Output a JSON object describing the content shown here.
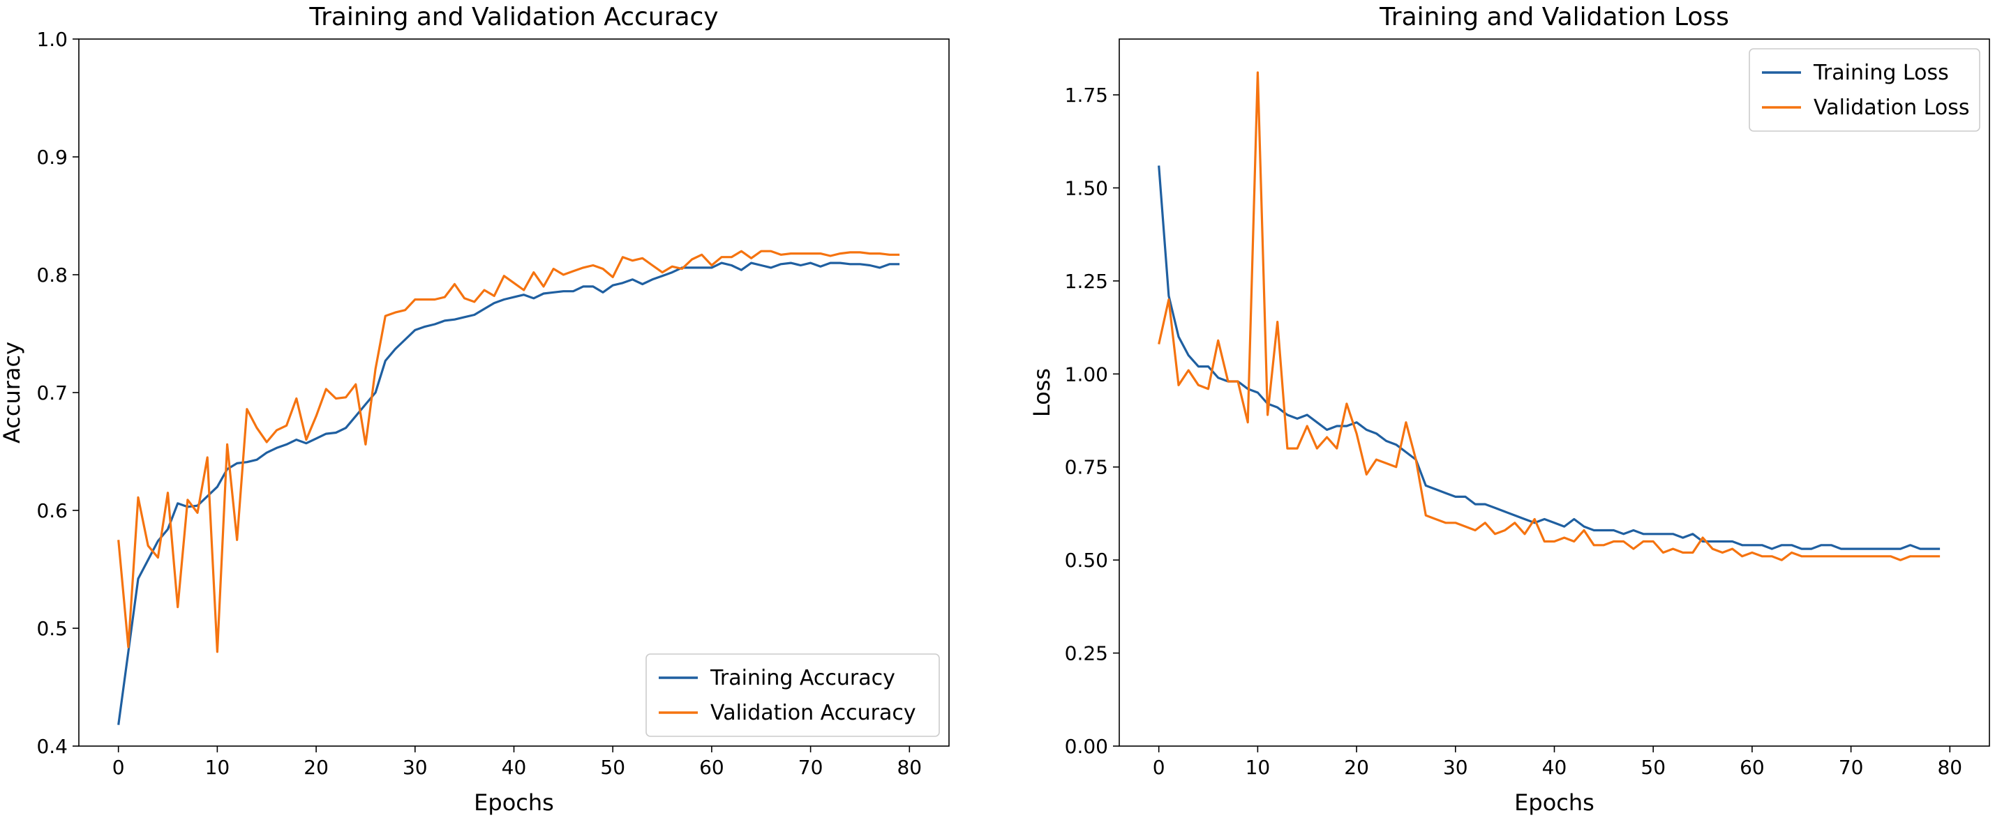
{
  "chart_data": [
    {
      "type": "line",
      "title": "Training and Validation Accuracy",
      "xlabel": "Epochs",
      "ylabel": "Accuracy",
      "xlim": [
        -4,
        84
      ],
      "ylim": [
        0.4,
        1.0
      ],
      "xticks": [
        0,
        10,
        20,
        30,
        40,
        50,
        60,
        70,
        80
      ],
      "yticks": [
        0.4,
        0.5,
        0.6,
        0.7,
        0.8,
        0.9,
        1.0
      ],
      "xtick_labels": [
        "0",
        "10",
        "20",
        "30",
        "40",
        "50",
        "60",
        "70",
        "80"
      ],
      "ytick_labels": [
        "0.4",
        "0.5",
        "0.6",
        "0.7",
        "0.8",
        "0.9",
        "1.0"
      ],
      "grid": false,
      "legend_position": "lower-right",
      "series": [
        {
          "name": "Training Accuracy",
          "color": "#1f5fa0",
          "values": [
            0.418,
            0.48,
            0.542,
            0.558,
            0.574,
            0.584,
            0.606,
            0.603,
            0.604,
            0.612,
            0.62,
            0.635,
            0.64,
            0.641,
            0.643,
            0.649,
            0.653,
            0.656,
            0.66,
            0.657,
            0.661,
            0.665,
            0.666,
            0.67,
            0.68,
            0.69,
            0.7,
            0.727,
            0.737,
            0.745,
            0.753,
            0.756,
            0.758,
            0.761,
            0.762,
            0.764,
            0.766,
            0.771,
            0.776,
            0.779,
            0.781,
            0.783,
            0.78,
            0.784,
            0.785,
            0.786,
            0.786,
            0.79,
            0.79,
            0.785,
            0.791,
            0.793,
            0.796,
            0.792,
            0.796,
            0.799,
            0.802,
            0.806,
            0.806,
            0.806,
            0.806,
            0.81,
            0.808,
            0.804,
            0.81,
            0.808,
            0.806,
            0.809,
            0.81,
            0.808,
            0.81,
            0.807,
            0.81,
            0.81,
            0.809,
            0.809,
            0.808,
            0.806,
            0.809,
            0.809
          ]
        },
        {
          "name": "Validation Accuracy",
          "color": "#f5730f",
          "values": [
            0.575,
            0.484,
            0.611,
            0.57,
            0.56,
            0.615,
            0.518,
            0.609,
            0.598,
            0.645,
            0.48,
            0.656,
            0.575,
            0.686,
            0.67,
            0.658,
            0.668,
            0.672,
            0.695,
            0.66,
            0.68,
            0.703,
            0.695,
            0.696,
            0.707,
            0.656,
            0.72,
            0.765,
            0.768,
            0.77,
            0.779,
            0.779,
            0.779,
            0.781,
            0.792,
            0.78,
            0.777,
            0.787,
            0.782,
            0.799,
            0.793,
            0.787,
            0.802,
            0.79,
            0.805,
            0.8,
            0.803,
            0.806,
            0.808,
            0.805,
            0.798,
            0.815,
            0.812,
            0.814,
            0.808,
            0.802,
            0.807,
            0.805,
            0.813,
            0.817,
            0.808,
            0.815,
            0.815,
            0.82,
            0.814,
            0.82,
            0.82,
            0.817,
            0.818,
            0.818,
            0.818,
            0.818,
            0.816,
            0.818,
            0.819,
            0.819,
            0.818,
            0.818,
            0.817,
            0.817
          ]
        }
      ]
    },
    {
      "type": "line",
      "title": "Training and Validation Loss",
      "xlabel": "Epochs",
      "ylabel": "Loss",
      "xlim": [
        -4,
        84
      ],
      "ylim": [
        0.0,
        1.9
      ],
      "xticks": [
        0,
        10,
        20,
        30,
        40,
        50,
        60,
        70,
        80
      ],
      "yticks": [
        0.0,
        0.25,
        0.5,
        0.75,
        1.0,
        1.25,
        1.5,
        1.75
      ],
      "xtick_labels": [
        "0",
        "10",
        "20",
        "30",
        "40",
        "50",
        "60",
        "70",
        "80"
      ],
      "ytick_labels": [
        "0.00",
        "0.25",
        "0.50",
        "0.75",
        "1.00",
        "1.25",
        "1.50",
        "1.75"
      ],
      "grid": false,
      "legend_position": "upper-right",
      "series": [
        {
          "name": "Training Loss",
          "color": "#1f5fa0",
          "values": [
            1.56,
            1.21,
            1.1,
            1.05,
            1.02,
            1.02,
            0.99,
            0.98,
            0.98,
            0.96,
            0.95,
            0.92,
            0.91,
            0.89,
            0.88,
            0.89,
            0.87,
            0.85,
            0.86,
            0.86,
            0.87,
            0.85,
            0.84,
            0.82,
            0.81,
            0.79,
            0.77,
            0.7,
            0.69,
            0.68,
            0.67,
            0.67,
            0.65,
            0.65,
            0.64,
            0.63,
            0.62,
            0.61,
            0.6,
            0.61,
            0.6,
            0.59,
            0.61,
            0.59,
            0.58,
            0.58,
            0.58,
            0.57,
            0.58,
            0.57,
            0.57,
            0.57,
            0.57,
            0.56,
            0.57,
            0.55,
            0.55,
            0.55,
            0.55,
            0.54,
            0.54,
            0.54,
            0.53,
            0.54,
            0.54,
            0.53,
            0.53,
            0.54,
            0.54,
            0.53,
            0.53,
            0.53,
            0.53,
            0.53,
            0.53,
            0.53,
            0.54,
            0.53,
            0.53,
            0.53
          ]
        },
        {
          "name": "Validation Loss",
          "color": "#f5730f",
          "values": [
            1.08,
            1.2,
            0.97,
            1.01,
            0.97,
            0.96,
            1.09,
            0.98,
            0.98,
            0.87,
            1.81,
            0.89,
            1.14,
            0.8,
            0.8,
            0.86,
            0.8,
            0.83,
            0.8,
            0.92,
            0.84,
            0.73,
            0.77,
            0.76,
            0.75,
            0.87,
            0.77,
            0.62,
            0.61,
            0.6,
            0.6,
            0.59,
            0.58,
            0.6,
            0.57,
            0.58,
            0.6,
            0.57,
            0.61,
            0.55,
            0.55,
            0.56,
            0.55,
            0.58,
            0.54,
            0.54,
            0.55,
            0.55,
            0.53,
            0.55,
            0.55,
            0.52,
            0.53,
            0.52,
            0.52,
            0.56,
            0.53,
            0.52,
            0.53,
            0.51,
            0.52,
            0.51,
            0.51,
            0.5,
            0.52,
            0.51,
            0.51,
            0.51,
            0.51,
            0.51,
            0.51,
            0.51,
            0.51,
            0.51,
            0.51,
            0.5,
            0.51,
            0.51,
            0.51,
            0.51
          ]
        }
      ]
    }
  ]
}
